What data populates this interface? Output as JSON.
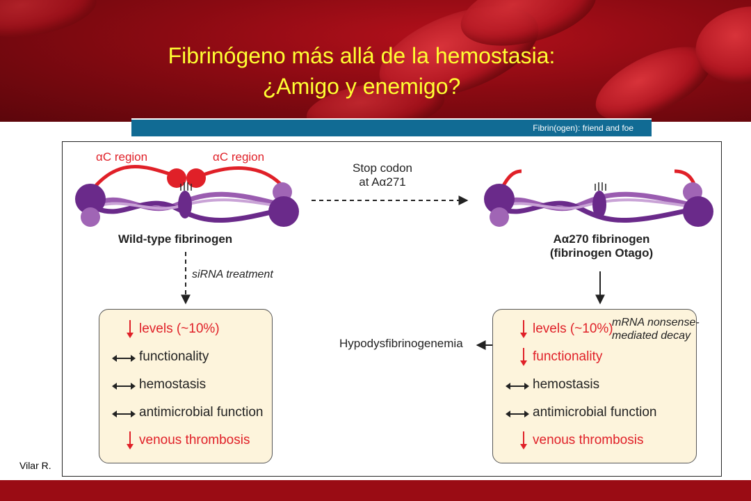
{
  "slide": {
    "title_line1": "Fibrinógeno más allá de la hemostasia:",
    "title_line2": "¿Amigo y enemigo?",
    "banner_text": "Fibrin(ogen): friend and foe",
    "citation": "Vilar R."
  },
  "figure": {
    "ac_region_left": "αC region",
    "ac_region_right": "αC region",
    "stop_codon_line1": "Stop codon",
    "stop_codon_line2": "at Aα271",
    "wild_type_label": "Wild-type fibrinogen",
    "mutant_label_line1": "Aα270 fibrinogen",
    "mutant_label_line2": "(fibrinogen Otago)",
    "sirna_label": "siRNA treatment",
    "mrna_label_line1": "mRNA nonsense-",
    "mrna_label_line2": "mediated decay",
    "hypo_label": "Hypodysfibrinogenemia",
    "left_box": [
      {
        "icon": "down-arrow-icon",
        "text": "levels (~10%)",
        "color": "red"
      },
      {
        "icon": "double-arrow-icon",
        "text": "functionality",
        "color": "black"
      },
      {
        "icon": "double-arrow-icon",
        "text": "hemostasis",
        "color": "black"
      },
      {
        "icon": "double-arrow-icon",
        "text": "antimicrobial function",
        "color": "black"
      },
      {
        "icon": "down-arrow-icon",
        "text": "venous thrombosis",
        "color": "red"
      }
    ],
    "right_box": [
      {
        "icon": "down-arrow-icon",
        "text": "levels (~10%)",
        "color": "red"
      },
      {
        "icon": "down-arrow-icon",
        "text": "functionality",
        "color": "red"
      },
      {
        "icon": "double-arrow-icon",
        "text": "hemostasis",
        "color": "black"
      },
      {
        "icon": "double-arrow-icon",
        "text": "antimicrobial function",
        "color": "black"
      },
      {
        "icon": "down-arrow-icon",
        "text": "venous thrombosis",
        "color": "red"
      }
    ]
  },
  "colors": {
    "title_yellow": "#ffff33",
    "banner_blue": "#116b94",
    "accent_red": "#e02028",
    "box_fill": "#fdf4dc",
    "purple_dark": "#6a2a8a",
    "purple_light": "#a065b5"
  }
}
